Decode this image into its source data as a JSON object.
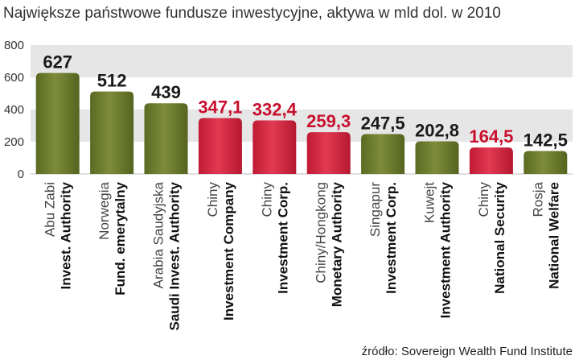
{
  "title": "Największe państwowe fundusze inwestycyjne, aktywa w mld dol. w 2010",
  "source": "źródło: Sovereign Wealth Fund Institute",
  "colors": {
    "olive": "#6b7a2c",
    "red": "#d0243c",
    "olive_label": "#1a1a1a",
    "red_label": "#c8102e",
    "grid_band": "#e6e6e6"
  },
  "chart_data": {
    "type": "bar",
    "title": "Największe państwowe fundusze inwestycyjne, aktywa w mld dol. w 2010",
    "xlabel": "",
    "ylabel": "",
    "ylim": [
      0,
      800
    ],
    "yticks": [
      "0",
      "200",
      "400",
      "600",
      "800"
    ],
    "grid": true,
    "categories": [
      {
        "country": "Abu Zabi",
        "fund": "Invest. Authority",
        "value": 627,
        "label": "627",
        "color": "olive"
      },
      {
        "country": "Norwegia",
        "fund": "Fund. emerytalny",
        "value": 512,
        "label": "512",
        "color": "olive"
      },
      {
        "country": "Arabia Saudyjska",
        "fund": "Saudi Invest. Authority",
        "value": 439,
        "label": "439",
        "color": "olive"
      },
      {
        "country": "Chiny",
        "fund": "Investment Company",
        "value": 347.1,
        "label": "347,1",
        "color": "red"
      },
      {
        "country": "Chiny",
        "fund": "Investment Corp.",
        "value": 332.4,
        "label": "332,4",
        "color": "red"
      },
      {
        "country": "Chiny/Hongkong",
        "fund": "Monetary Authority",
        "value": 259.3,
        "label": "259,3",
        "color": "red"
      },
      {
        "country": "Singapur",
        "fund": "Investment Corp.",
        "value": 247.5,
        "label": "247,5",
        "color": "olive"
      },
      {
        "country": "Kuwejt",
        "fund": "Investment Authority",
        "value": 202.8,
        "label": "202,8",
        "color": "olive"
      },
      {
        "country": "Chiny",
        "fund": "National Security",
        "value": 164.5,
        "label": "164,5",
        "color": "red"
      },
      {
        "country": "Rosja",
        "fund": "National Welfare",
        "value": 142.5,
        "label": "142,5",
        "color": "olive"
      }
    ]
  }
}
